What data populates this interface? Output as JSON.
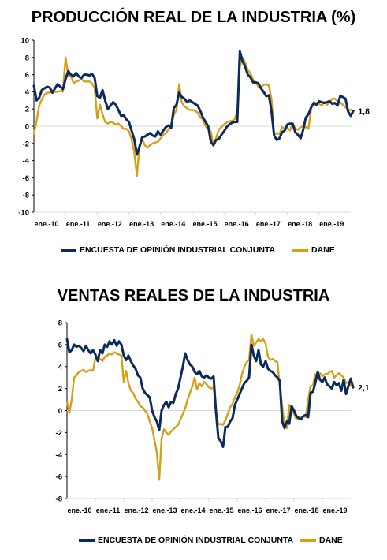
{
  "colors": {
    "encuesta": "#0d2a5c",
    "dane": "#d4a017",
    "axis": "#000000",
    "gridline": "#d9d9d9"
  },
  "chart_data": [
    {
      "type": "line",
      "title": "PRODUCCIÓN REAL DE LA INDUSTRIA (%)",
      "ylim": [
        -10,
        10
      ],
      "y_ticks": [
        10,
        8,
        6,
        4,
        2,
        0,
        -2,
        -4,
        -6,
        -8,
        -10
      ],
      "x_tick_labels": [
        "ene.-10",
        "ene.-11",
        "ene.-12",
        "ene.-13",
        "ene.-14",
        "ene.-15",
        "ene.-16",
        "ene.-17",
        "ene.-18",
        "ene.-19"
      ],
      "xlim_months": [
        0,
        120
      ],
      "grid": false,
      "legend_position": "bottom",
      "end_label": "1,8",
      "series": [
        {
          "name": "ENCUESTA DE OPINIÓN INDUSTRIAL CONJUNTA",
          "values": [
            4.7,
            3.0,
            3.3,
            4.2,
            4.4,
            4.6,
            4.5,
            3.9,
            4.4,
            4.9,
            4.6,
            4.3,
            5.5,
            6.4,
            6.0,
            5.8,
            6.2,
            5.8,
            5.6,
            6.0,
            6.0,
            5.9,
            6.1,
            5.6,
            3.5,
            3.3,
            4.2,
            3.0,
            2.0,
            2.4,
            2.8,
            2.5,
            1.9,
            1.2,
            1.3,
            0.8,
            0.5,
            -0.5,
            -1.5,
            -3.3,
            -2.4,
            -1.3,
            -1.2,
            -1.0,
            -0.8,
            -1.1,
            -1.2,
            -0.6,
            -1.0,
            -0.5,
            -0.1,
            0.1,
            -0.2,
            2.1,
            2.5,
            3.9,
            3.4,
            3.2,
            2.8,
            3.0,
            2.8,
            2.6,
            2.4,
            1.8,
            1.0,
            0.5,
            0.0,
            -1.8,
            -2.2,
            -1.6,
            -1.5,
            -1.0,
            -0.6,
            -0.1,
            0.2,
            0.4,
            0.5,
            0.5,
            8.7,
            7.6,
            6.9,
            6.0,
            5.7,
            5.1,
            5.1,
            5.0,
            4.4,
            4.0,
            3.5,
            3.6,
            1.7,
            -1.1,
            -1.6,
            -1.4,
            -0.7,
            -0.5,
            0.2,
            0.3,
            0.3,
            -0.7,
            -1.0,
            -1.4,
            -0.4,
            1.0,
            1.4,
            2.2,
            2.7,
            2.5,
            2.9,
            2.8,
            2.7,
            2.8,
            2.9,
            2.6,
            2.7,
            2.4,
            3.5,
            3.4,
            3.2,
            1.7,
            1.2,
            1.8
          ]
        },
        {
          "name": "DANE",
          "values": [
            -0.9,
            0.6,
            2.4,
            3.1,
            3.7,
            3.9,
            3.9,
            4.0,
            4.0,
            4.0,
            4.1,
            4.0,
            8.0,
            5.9,
            5.9,
            5.0,
            5.2,
            5.3,
            5.5,
            5.2,
            5.2,
            5.2,
            5.0,
            4.4,
            0.9,
            2.5,
            1.4,
            0.5,
            0.3,
            0.5,
            0.4,
            0.2,
            0.3,
            0.0,
            -0.3,
            -0.3,
            -0.6,
            -1.5,
            -3.0,
            -5.8,
            -2.2,
            -1.5,
            -2.2,
            -2.5,
            -2.2,
            -2.0,
            -1.9,
            -1.8,
            -1.4,
            -1.0,
            -0.8,
            -0.4,
            0.2,
            1.3,
            1.9,
            4.9,
            2.8,
            2.3,
            2.1,
            1.9,
            1.9,
            1.8,
            1.6,
            1.0,
            0.8,
            0.0,
            -0.3,
            -0.6,
            -2.3,
            -1.4,
            -0.4,
            -0.1,
            0.2,
            0.4,
            0.6,
            0.6,
            0.8,
            1.7,
            6.9,
            8.0,
            7.4,
            6.5,
            6.2,
            5.4,
            5.1,
            4.6,
            4.5,
            4.8,
            4.9,
            4.7,
            3.1,
            -1.0,
            -0.8,
            -0.9,
            -0.1,
            -0.3,
            -0.2,
            -0.5,
            0.3,
            -0.3,
            -0.4,
            -0.1,
            0.0,
            -0.1,
            -0.3,
            2.1,
            2.8,
            2.7,
            2.6,
            2.4,
            2.8,
            2.5,
            2.8,
            3.2,
            3.2,
            2.9,
            2.8,
            2.5,
            2.2,
            1.9,
            1.9,
            1.8
          ]
        }
      ]
    },
    {
      "type": "line",
      "title": "VENTAS REALES DE LA INDUSTRIA",
      "ylim": [
        -8,
        8
      ],
      "y_ticks": [
        8,
        6,
        4,
        2,
        0,
        -2,
        -4,
        -6,
        -8
      ],
      "x_tick_labels": [
        "ene.-10",
        "ene.-11",
        "ene.-12",
        "ene.-13",
        "ene.-14",
        "ene.-15",
        "ene.-16",
        "ene.-17",
        "ene.-18",
        "ene.-19"
      ],
      "xlim_months": [
        0,
        120
      ],
      "grid": false,
      "legend_position": "bottom",
      "end_label": "2,1",
      "series": [
        {
          "name": "ENCUESTA DE OPINIÓN INDUSTRIAL CONJUNTA",
          "values": [
            6.5,
            5.3,
            5.5,
            6.0,
            5.8,
            5.9,
            5.7,
            5.4,
            5.9,
            5.5,
            5.2,
            5.5,
            5.1,
            4.5,
            5.5,
            5.2,
            6.0,
            5.8,
            6.3,
            6.0,
            6.4,
            5.9,
            6.3,
            6.0,
            5.0,
            4.6,
            5.0,
            4.5,
            4.1,
            3.8,
            3.2,
            3.0,
            2.0,
            1.6,
            1.4,
            1.2,
            0.0,
            -0.6,
            -1.0,
            -1.8,
            0.0,
            0.5,
            0.8,
            0.3,
            0.8,
            0.7,
            1.5,
            2.0,
            3.0,
            4.0,
            5.2,
            4.6,
            4.2,
            4.0,
            3.5,
            3.3,
            3.6,
            3.1,
            3.0,
            3.2,
            3.0,
            2.9,
            3.1,
            -0.1,
            -2.5,
            -2.8,
            -3.3,
            -1.5,
            -1.5,
            -1.0,
            -0.7,
            0.5,
            1.0,
            1.5,
            2.0,
            2.5,
            2.7,
            3.0,
            6.0,
            5.0,
            4.5,
            5.5,
            4.2,
            4.0,
            4.5,
            3.8,
            3.6,
            3.5,
            3.2,
            3.0,
            2.7,
            -1.0,
            -1.6,
            -1.0,
            -1.2,
            0.4,
            0.0,
            -0.5,
            -0.7,
            -0.8,
            -0.5,
            -0.4,
            -0.6,
            1.6,
            1.7,
            2.5,
            3.5,
            2.8,
            2.6,
            3.0,
            2.4,
            2.2,
            2.0,
            2.6,
            2.3,
            2.5,
            1.8,
            2.8,
            1.5,
            2.2,
            2.9,
            2.1
          ]
        },
        {
          "name": "DANE",
          "values": [
            0.8,
            -0.2,
            1.0,
            3.0,
            3.2,
            3.5,
            3.6,
            3.7,
            3.5,
            3.6,
            3.7,
            3.6,
            4.8,
            4.5,
            4.7,
            4.5,
            4.9,
            5.0,
            5.2,
            5.1,
            5.3,
            5.2,
            5.1,
            5.0,
            2.6,
            3.6,
            2.5,
            1.8,
            1.6,
            1.1,
            0.8,
            0.4,
            0.3,
            0.0,
            -0.3,
            -1.0,
            -1.6,
            -2.7,
            -3.8,
            -6.3,
            -2.6,
            -1.7,
            -2.0,
            -2.2,
            -1.9,
            -1.7,
            -1.5,
            -1.3,
            -0.8,
            -0.3,
            0.2,
            1.0,
            1.6,
            2.2,
            3.0,
            1.9,
            2.5,
            2.2,
            2.6,
            2.4,
            2.1,
            2.0,
            2.1,
            -0.1,
            -1.3,
            -1.2,
            -1.3,
            -0.9,
            -0.3,
            0.3,
            0.6,
            1.2,
            1.6,
            2.3,
            3.3,
            4.0,
            4.4,
            4.6,
            6.9,
            5.9,
            6.2,
            6.5,
            6.3,
            6.5,
            6.1,
            4.9,
            4.6,
            4.7,
            4.5,
            4.4,
            2.2,
            0.4,
            -1.4,
            -1.6,
            0.5,
            0.3,
            -0.3,
            -0.8,
            -0.6,
            -0.6,
            -0.5,
            -0.6,
            1.0,
            2.2,
            2.3,
            3.3,
            3.0,
            3.4,
            3.1,
            3.3,
            3.3,
            3.5,
            3.6,
            3.0,
            3.2,
            3.4,
            3.2,
            3.0,
            2.5,
            2.6,
            2.3,
            2.1
          ]
        }
      ]
    }
  ]
}
